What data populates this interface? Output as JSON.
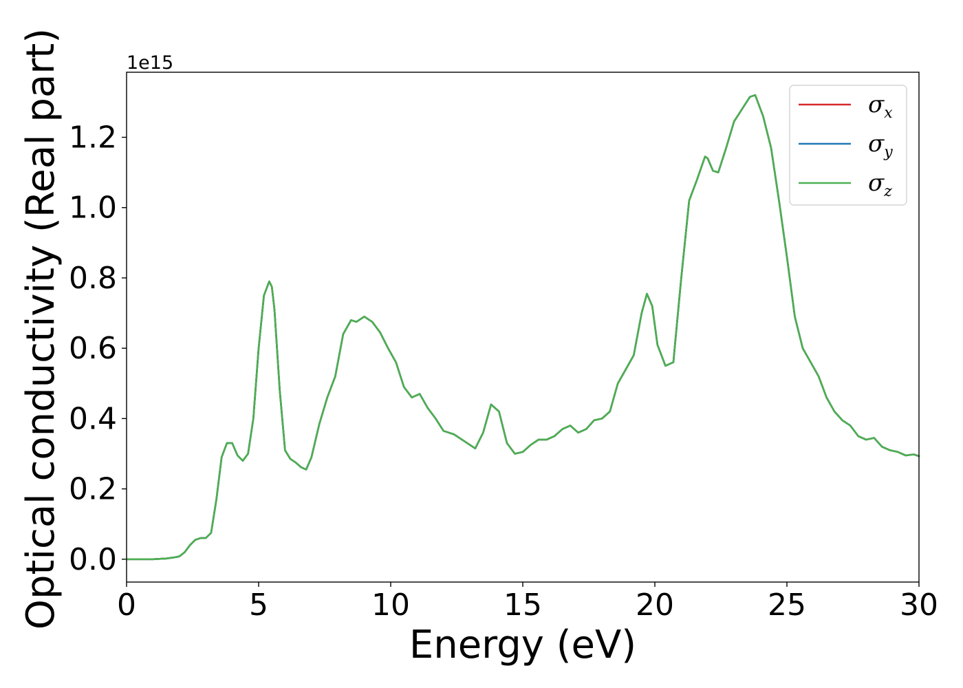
{
  "chart_data": {
    "type": "line",
    "title": "",
    "xlabel": "Energy (eV)",
    "ylabel": "Optical conductivity (Real part)",
    "y_offset_label": "1e15",
    "xlim": [
      0,
      30
    ],
    "ylim": [
      -0.065,
      1.385
    ],
    "x_ticks": [
      {
        "value": 0,
        "label": "0"
      },
      {
        "value": 5,
        "label": "5"
      },
      {
        "value": 10,
        "label": "10"
      },
      {
        "value": 15,
        "label": "15"
      },
      {
        "value": 20,
        "label": "20"
      },
      {
        "value": 25,
        "label": "25"
      },
      {
        "value": 30,
        "label": "30"
      }
    ],
    "y_ticks": [
      {
        "value": 0.0,
        "label": "0.0"
      },
      {
        "value": 0.2,
        "label": "0.2"
      },
      {
        "value": 0.4,
        "label": "0.4"
      },
      {
        "value": 0.6,
        "label": "0.6"
      },
      {
        "value": 0.8,
        "label": "0.8"
      },
      {
        "value": 1.0,
        "label": "1.0"
      },
      {
        "value": 1.2,
        "label": "1.2"
      }
    ],
    "grid": false,
    "legend_position": "top-right",
    "series": [
      {
        "name": "σx",
        "symbol": "σ",
        "subscript": "x",
        "color": "#d62728"
      },
      {
        "name": "σy",
        "symbol": "σ",
        "subscript": "y",
        "color": "#1f77b4"
      },
      {
        "name": "σz",
        "symbol": "σ",
        "subscript": "z",
        "color": "#4caf50"
      }
    ],
    "x": [
      0,
      1,
      1.5,
      1.8,
      2.0,
      2.2,
      2.4,
      2.6,
      2.8,
      3.0,
      3.2,
      3.4,
      3.6,
      3.8,
      4.0,
      4.2,
      4.4,
      4.6,
      4.8,
      5.0,
      5.2,
      5.4,
      5.5,
      5.6,
      5.8,
      6.0,
      6.2,
      6.4,
      6.6,
      6.8,
      7.0,
      7.3,
      7.6,
      7.9,
      8.2,
      8.5,
      8.7,
      9.0,
      9.3,
      9.6,
      9.9,
      10.2,
      10.5,
      10.8,
      11.1,
      11.4,
      11.7,
      12.0,
      12.4,
      12.8,
      13.2,
      13.5,
      13.8,
      14.1,
      14.4,
      14.7,
      15.0,
      15.3,
      15.6,
      15.9,
      16.2,
      16.5,
      16.8,
      17.1,
      17.4,
      17.7,
      18.0,
      18.3,
      18.6,
      18.9,
      19.2,
      19.5,
      19.7,
      19.9,
      20.1,
      20.4,
      20.7,
      21.0,
      21.3,
      21.6,
      21.9,
      22.0,
      22.2,
      22.4,
      22.7,
      23.0,
      23.3,
      23.6,
      23.8,
      24.1,
      24.4,
      24.7,
      25.0,
      25.3,
      25.6,
      25.9,
      26.2,
      26.5,
      26.8,
      27.1,
      27.4,
      27.7,
      28.0,
      28.3,
      28.6,
      28.9,
      29.2,
      29.5,
      29.8,
      30.0
    ],
    "y": [
      0.0,
      0.0,
      0.002,
      0.005,
      0.008,
      0.02,
      0.04,
      0.055,
      0.06,
      0.06,
      0.075,
      0.17,
      0.29,
      0.33,
      0.33,
      0.295,
      0.28,
      0.3,
      0.4,
      0.6,
      0.75,
      0.79,
      0.775,
      0.71,
      0.48,
      0.31,
      0.285,
      0.275,
      0.262,
      0.255,
      0.29,
      0.385,
      0.46,
      0.52,
      0.64,
      0.68,
      0.675,
      0.69,
      0.675,
      0.645,
      0.6,
      0.56,
      0.49,
      0.46,
      0.47,
      0.43,
      0.4,
      0.365,
      0.355,
      0.335,
      0.315,
      0.36,
      0.44,
      0.42,
      0.33,
      0.3,
      0.305,
      0.325,
      0.34,
      0.34,
      0.35,
      0.37,
      0.38,
      0.36,
      0.37,
      0.395,
      0.4,
      0.42,
      0.5,
      0.54,
      0.58,
      0.7,
      0.755,
      0.72,
      0.61,
      0.55,
      0.56,
      0.8,
      1.02,
      1.08,
      1.145,
      1.14,
      1.105,
      1.1,
      1.17,
      1.245,
      1.28,
      1.315,
      1.32,
      1.26,
      1.17,
      1.02,
      0.86,
      0.69,
      0.6,
      0.56,
      0.52,
      0.46,
      0.42,
      0.395,
      0.38,
      0.35,
      0.34,
      0.345,
      0.32,
      0.31,
      0.305,
      0.295,
      0.298,
      0.293
    ]
  }
}
